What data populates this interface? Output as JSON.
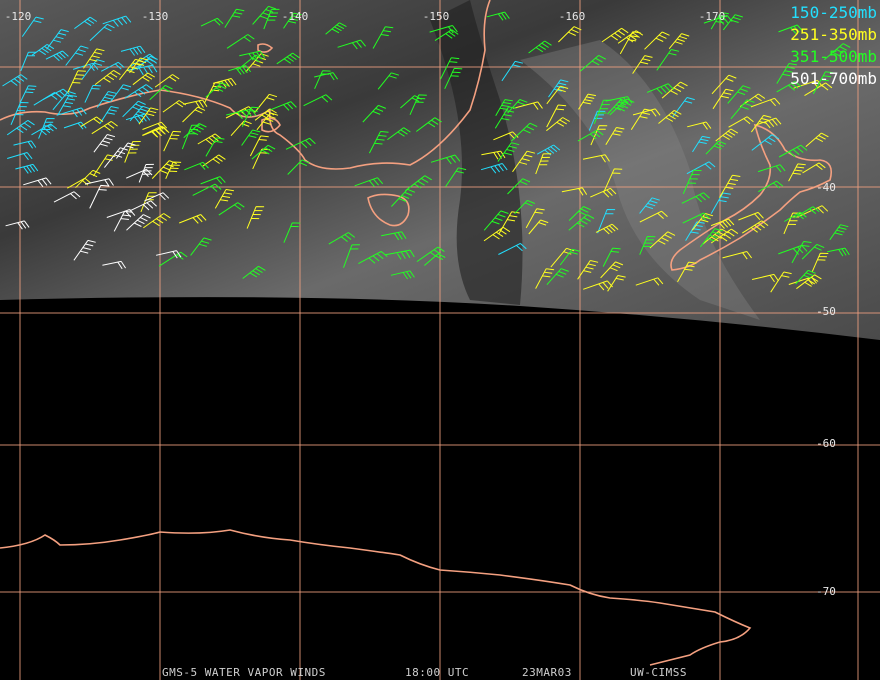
{
  "map": {
    "longitude_labels": [
      "-120",
      "-130",
      "-140",
      "-150",
      "-160",
      "-170"
    ],
    "latitude_labels": [
      "-40",
      "-50",
      "-60",
      "-70"
    ],
    "legend": [
      "150-250mb",
      "251-350mb",
      "351-500mb",
      "501-700mb"
    ],
    "footer": [
      "GMS-5 WATER VAPOR WINDS",
      "18:00 UTC",
      "23MAR03",
      "UW-CIMSS"
    ]
  }
}
